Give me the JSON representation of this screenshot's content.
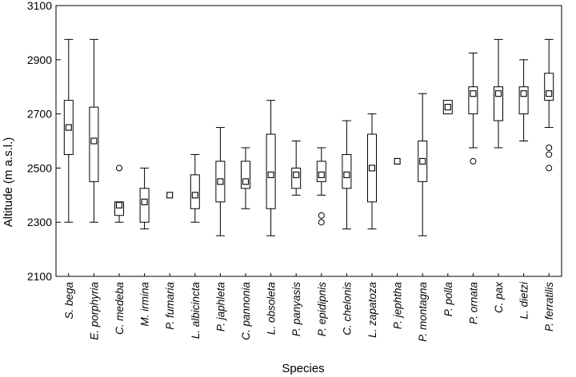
{
  "chart_data": {
    "type": "boxplot",
    "title": "",
    "xlabel": "Species",
    "ylabel": "Altitude (m a.s.l.)",
    "ylim": [
      2100,
      3100
    ],
    "yticks": [
      2100,
      2300,
      2500,
      2700,
      2900,
      3100
    ],
    "grid": false,
    "legend": "none",
    "categories": [
      "S. bega",
      "E. porphyria",
      "C. medeba",
      "M. irmina",
      "P. fumaria",
      "L. albicincta",
      "P. japhleta",
      "C. pannonia",
      "L. obsoleta",
      "P. panyasis",
      "P. epidipnis",
      "C. chelonis",
      "L. zapatoza",
      "P. jephtha",
      "P. montagna",
      "P. polla",
      "P. ornata",
      "C. pax",
      "L. dietzi",
      "P. ferratilis"
    ],
    "boxes": [
      {
        "min": 2300,
        "q1": 2550,
        "median": 2650,
        "q3": 2750,
        "max": 2975,
        "outliers": []
      },
      {
        "min": 2300,
        "q1": 2450,
        "median": 2600,
        "q3": 2725,
        "max": 2975,
        "outliers": []
      },
      {
        "min": 2300,
        "q1": 2325,
        "median": 2363,
        "q3": 2375,
        "max": 2375,
        "outliers": [
          2500
        ]
      },
      {
        "min": 2275,
        "q1": 2300,
        "median": 2375,
        "q3": 2425,
        "max": 2500,
        "outliers": []
      },
      {
        "min": 2400,
        "q1": 2400,
        "median": 2400,
        "q3": 2400,
        "max": 2400,
        "outliers": []
      },
      {
        "min": 2300,
        "q1": 2350,
        "median": 2400,
        "q3": 2475,
        "max": 2550,
        "outliers": []
      },
      {
        "min": 2250,
        "q1": 2375,
        "median": 2450,
        "q3": 2525,
        "max": 2650,
        "outliers": []
      },
      {
        "min": 2350,
        "q1": 2425,
        "median": 2450,
        "q3": 2525,
        "max": 2575,
        "outliers": []
      },
      {
        "min": 2250,
        "q1": 2350,
        "median": 2475,
        "q3": 2625,
        "max": 2750,
        "outliers": []
      },
      {
        "min": 2400,
        "q1": 2425,
        "median": 2475,
        "q3": 2500,
        "max": 2600,
        "outliers": []
      },
      {
        "min": 2400,
        "q1": 2450,
        "median": 2475,
        "q3": 2525,
        "max": 2575,
        "outliers": [
          2325,
          2300
        ]
      },
      {
        "min": 2275,
        "q1": 2425,
        "median": 2475,
        "q3": 2550,
        "max": 2675,
        "outliers": []
      },
      {
        "min": 2275,
        "q1": 2375,
        "median": 2500,
        "q3": 2625,
        "max": 2700,
        "outliers": []
      },
      {
        "min": 2525,
        "q1": 2525,
        "median": 2525,
        "q3": 2525,
        "max": 2525,
        "outliers": []
      },
      {
        "min": 2250,
        "q1": 2450,
        "median": 2525,
        "q3": 2600,
        "max": 2775,
        "outliers": []
      },
      {
        "min": 2700,
        "q1": 2700,
        "median": 2725,
        "q3": 2750,
        "max": 2750,
        "outliers": []
      },
      {
        "min": 2575,
        "q1": 2700,
        "median": 2775,
        "q3": 2800,
        "max": 2925,
        "outliers": [
          2525
        ]
      },
      {
        "min": 2575,
        "q1": 2675,
        "median": 2775,
        "q3": 2800,
        "max": 2975,
        "outliers": []
      },
      {
        "min": 2600,
        "q1": 2700,
        "median": 2775,
        "q3": 2800,
        "max": 2900,
        "outliers": []
      },
      {
        "min": 2650,
        "q1": 2750,
        "median": 2775,
        "q3": 2850,
        "max": 2975,
        "outliers": [
          2575,
          2550,
          2500
        ]
      }
    ]
  }
}
